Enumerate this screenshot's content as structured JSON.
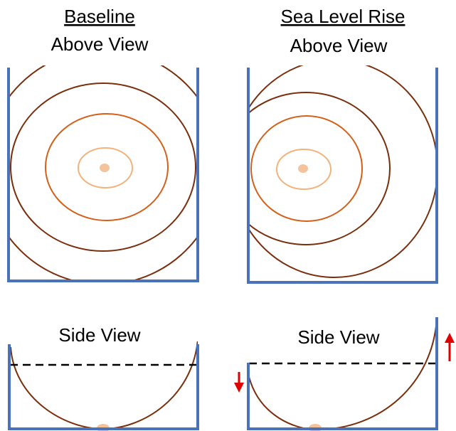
{
  "panels": {
    "baseline": {
      "heading": "Baseline",
      "above_label": "Above View",
      "side_label": "Side View"
    },
    "sea_level_rise": {
      "heading": "Sea Level Rise",
      "above_label": "Above View",
      "side_label": "Side View"
    }
  },
  "colors": {
    "wall": "#4a72b8",
    "contour_outer": "#7b2e0c",
    "contour_mid": "#d4601a",
    "contour_inner": "#f2b37c",
    "center_dot": "#f5c39b",
    "water_line": "#000000",
    "arrow": "#e00000"
  },
  "icons": {
    "down_arrow": "down-arrow-icon",
    "up_arrow": "up-arrow-icon"
  }
}
